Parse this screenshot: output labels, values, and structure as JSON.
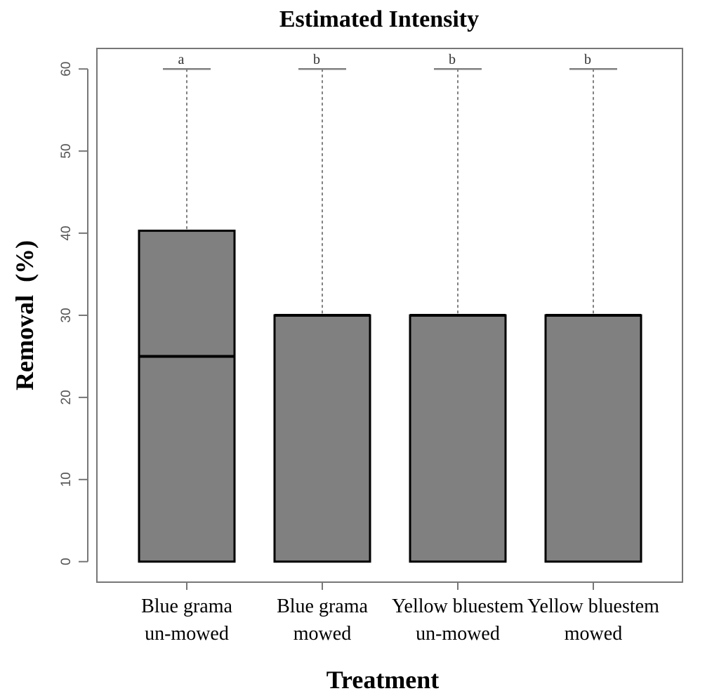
{
  "chart_data": {
    "type": "box",
    "title": "Estimated Intensity",
    "xlabel": "Treatment",
    "ylabel": "Removal  (%)",
    "ylim": [
      -2.5,
      62.5
    ],
    "yticks": [
      0,
      10,
      20,
      30,
      40,
      50,
      60
    ],
    "grid": false,
    "categories": [
      {
        "lines": [
          "Blue grama",
          "un-mowed"
        ],
        "min": 0,
        "q1": 0,
        "median": 25,
        "q3": 40.3,
        "max": 60,
        "group": "a"
      },
      {
        "lines": [
          "Blue grama",
          "mowed"
        ],
        "min": 0,
        "q1": 0,
        "median": 30,
        "q3": 30,
        "max": 60,
        "group": "b"
      },
      {
        "lines": [
          "Yellow bluestem",
          "un-mowed"
        ],
        "min": 0,
        "q1": 0,
        "median": 30,
        "q3": 30,
        "max": 60,
        "group": "b"
      },
      {
        "lines": [
          "Yellow bluestem",
          "mowed"
        ],
        "min": 0,
        "q1": 0,
        "median": 30,
        "q3": 30,
        "max": 60,
        "group": "b"
      }
    ],
    "box_color": "#808080",
    "border_color": "#000000",
    "whisker_color": "#808080",
    "frame_color": "#777777"
  }
}
